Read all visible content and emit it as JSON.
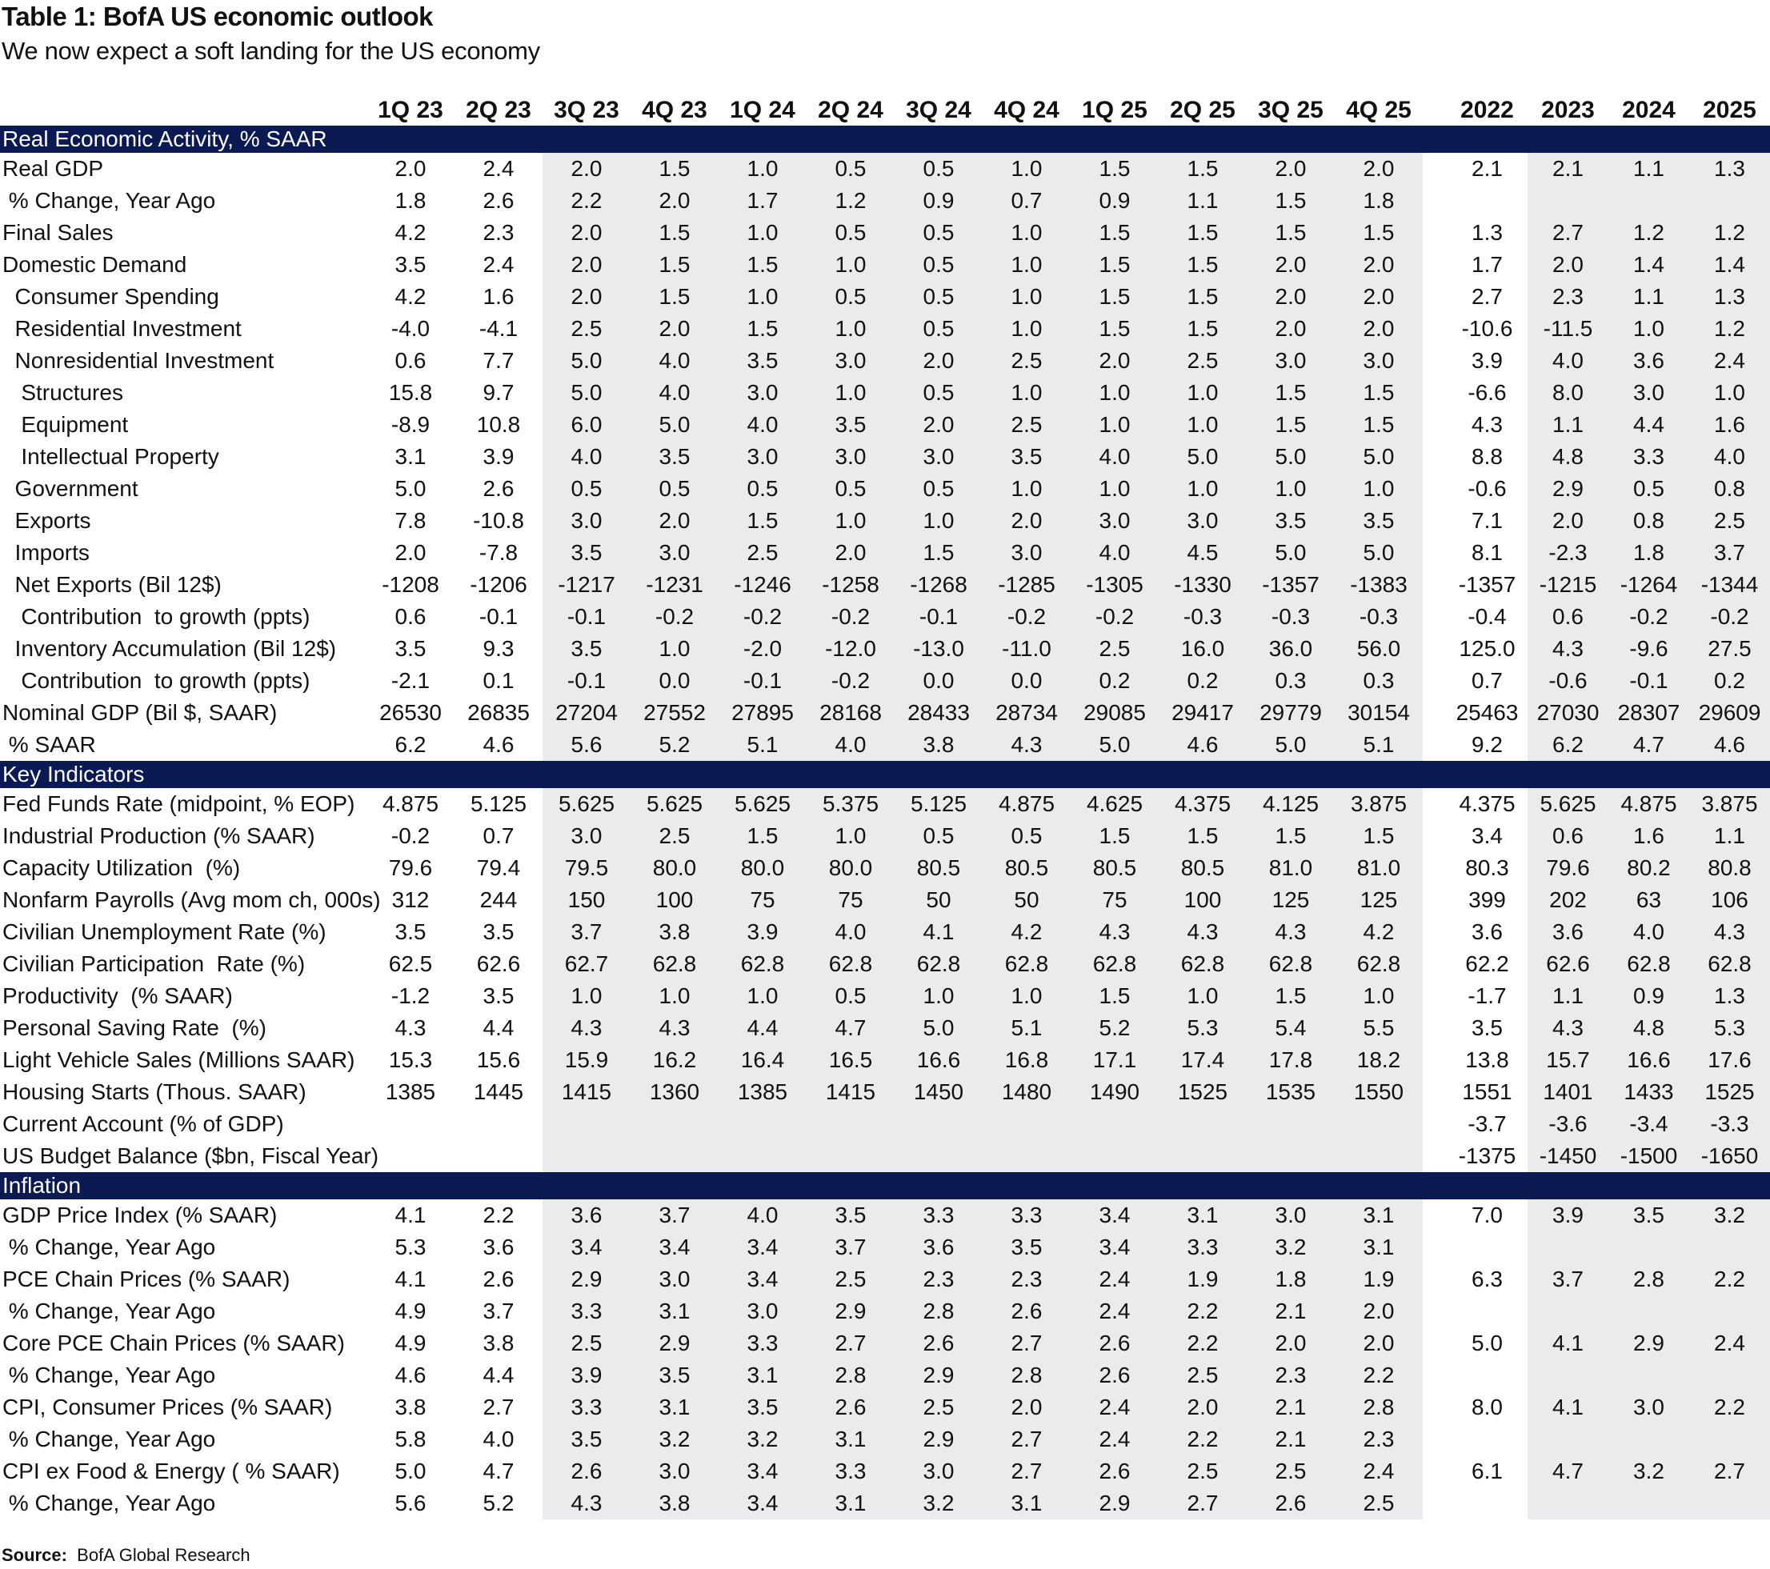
{
  "title": "Table 1: BofA US economic outlook",
  "subtitle": "We now expect a soft landing for the US economy",
  "columns": {
    "quarters": [
      "1Q 23",
      "2Q 23",
      "3Q 23",
      "4Q 23",
      "1Q 24",
      "2Q 24",
      "3Q 24",
      "4Q 24",
      "1Q 25",
      "2Q 25",
      "3Q 25",
      "4Q 25"
    ],
    "years": [
      "2022",
      "2023",
      "2024",
      "2025"
    ]
  },
  "sections": [
    {
      "title": "Real Economic Activity, % SAAR",
      "rows": [
        {
          "label": "Real GDP",
          "q": [
            "2.0",
            "2.4",
            "2.0",
            "1.5",
            "1.0",
            "0.5",
            "0.5",
            "1.0",
            "1.5",
            "1.5",
            "2.0",
            "2.0"
          ],
          "y": [
            "2.1",
            "2.1",
            "1.1",
            "1.3"
          ]
        },
        {
          "label": " % Change, Year Ago",
          "q": [
            "1.8",
            "2.6",
            "2.2",
            "2.0",
            "1.7",
            "1.2",
            "0.9",
            "0.7",
            "0.9",
            "1.1",
            "1.5",
            "1.8"
          ],
          "y": [
            "",
            "",
            "",
            ""
          ]
        },
        {
          "label": "Final Sales",
          "q": [
            "4.2",
            "2.3",
            "2.0",
            "1.5",
            "1.0",
            "0.5",
            "0.5",
            "1.0",
            "1.5",
            "1.5",
            "1.5",
            "1.5"
          ],
          "y": [
            "1.3",
            "2.7",
            "1.2",
            "1.2"
          ]
        },
        {
          "label": "Domestic Demand",
          "q": [
            "3.5",
            "2.4",
            "2.0",
            "1.5",
            "1.5",
            "1.0",
            "0.5",
            "1.0",
            "1.5",
            "1.5",
            "2.0",
            "2.0"
          ],
          "y": [
            "1.7",
            "2.0",
            "1.4",
            "1.4"
          ]
        },
        {
          "label": "  Consumer Spending",
          "q": [
            "4.2",
            "1.6",
            "2.0",
            "1.5",
            "1.0",
            "0.5",
            "0.5",
            "1.0",
            "1.5",
            "1.5",
            "2.0",
            "2.0"
          ],
          "y": [
            "2.7",
            "2.3",
            "1.1",
            "1.3"
          ]
        },
        {
          "label": "  Residential Investment",
          "q": [
            "-4.0",
            "-4.1",
            "2.5",
            "2.0",
            "1.5",
            "1.0",
            "0.5",
            "1.0",
            "1.5",
            "1.5",
            "2.0",
            "2.0"
          ],
          "y": [
            "-10.6",
            "-11.5",
            "1.0",
            "1.2"
          ]
        },
        {
          "label": "  Nonresidential Investment",
          "q": [
            "0.6",
            "7.7",
            "5.0",
            "4.0",
            "3.5",
            "3.0",
            "2.0",
            "2.5",
            "2.0",
            "2.5",
            "3.0",
            "3.0"
          ],
          "y": [
            "3.9",
            "4.0",
            "3.6",
            "2.4"
          ]
        },
        {
          "label": "   Structures",
          "q": [
            "15.8",
            "9.7",
            "5.0",
            "4.0",
            "3.0",
            "1.0",
            "0.5",
            "1.0",
            "1.0",
            "1.0",
            "1.5",
            "1.5"
          ],
          "y": [
            "-6.6",
            "8.0",
            "3.0",
            "1.0"
          ]
        },
        {
          "label": "   Equipment",
          "q": [
            "-8.9",
            "10.8",
            "6.0",
            "5.0",
            "4.0",
            "3.5",
            "2.0",
            "2.5",
            "1.0",
            "1.0",
            "1.5",
            "1.5"
          ],
          "y": [
            "4.3",
            "1.1",
            "4.4",
            "1.6"
          ]
        },
        {
          "label": "   Intellectual Property",
          "q": [
            "3.1",
            "3.9",
            "4.0",
            "3.5",
            "3.0",
            "3.0",
            "3.0",
            "3.5",
            "4.0",
            "5.0",
            "5.0",
            "5.0"
          ],
          "y": [
            "8.8",
            "4.8",
            "3.3",
            "4.0"
          ]
        },
        {
          "label": "  Government",
          "q": [
            "5.0",
            "2.6",
            "0.5",
            "0.5",
            "0.5",
            "0.5",
            "0.5",
            "1.0",
            "1.0",
            "1.0",
            "1.0",
            "1.0"
          ],
          "y": [
            "-0.6",
            "2.9",
            "0.5",
            "0.8"
          ]
        },
        {
          "label": "  Exports",
          "q": [
            "7.8",
            "-10.8",
            "3.0",
            "2.0",
            "1.5",
            "1.0",
            "1.0",
            "2.0",
            "3.0",
            "3.0",
            "3.5",
            "3.5"
          ],
          "y": [
            "7.1",
            "2.0",
            "0.8",
            "2.5"
          ]
        },
        {
          "label": "  Imports",
          "q": [
            "2.0",
            "-7.8",
            "3.5",
            "3.0",
            "2.5",
            "2.0",
            "1.5",
            "3.0",
            "4.0",
            "4.5",
            "5.0",
            "5.0"
          ],
          "y": [
            "8.1",
            "-2.3",
            "1.8",
            "3.7"
          ]
        },
        {
          "label": "  Net Exports (Bil 12$)",
          "q": [
            "-1208",
            "-1206",
            "-1217",
            "-1231",
            "-1246",
            "-1258",
            "-1268",
            "-1285",
            "-1305",
            "-1330",
            "-1357",
            "-1383"
          ],
          "y": [
            "-1357",
            "-1215",
            "-1264",
            "-1344"
          ]
        },
        {
          "label": "   Contribution  to growth (ppts)",
          "q": [
            "0.6",
            "-0.1",
            "-0.1",
            "-0.2",
            "-0.2",
            "-0.2",
            "-0.1",
            "-0.2",
            "-0.2",
            "-0.3",
            "-0.3",
            "-0.3"
          ],
          "y": [
            "-0.4",
            "0.6",
            "-0.2",
            "-0.2"
          ]
        },
        {
          "label": "  Inventory Accumulation (Bil 12$)",
          "q": [
            "3.5",
            "9.3",
            "3.5",
            "1.0",
            "-2.0",
            "-12.0",
            "-13.0",
            "-11.0",
            "2.5",
            "16.0",
            "36.0",
            "56.0"
          ],
          "y": [
            "125.0",
            "4.3",
            "-9.6",
            "27.5"
          ]
        },
        {
          "label": "   Contribution  to growth (ppts)",
          "q": [
            "-2.1",
            "0.1",
            "-0.1",
            "0.0",
            "-0.1",
            "-0.2",
            "0.0",
            "0.0",
            "0.2",
            "0.2",
            "0.3",
            "0.3"
          ],
          "y": [
            "0.7",
            "-0.6",
            "-0.1",
            "0.2"
          ]
        },
        {
          "label": "Nominal GDP (Bil $, SAAR)",
          "q": [
            "26530",
            "26835",
            "27204",
            "27552",
            "27895",
            "28168",
            "28433",
            "28734",
            "29085",
            "29417",
            "29779",
            "30154"
          ],
          "y": [
            "25463",
            "27030",
            "28307",
            "29609"
          ]
        },
        {
          "label": " % SAAR",
          "q": [
            "6.2",
            "4.6",
            "5.6",
            "5.2",
            "5.1",
            "4.0",
            "3.8",
            "4.3",
            "5.0",
            "4.6",
            "5.0",
            "5.1"
          ],
          "y": [
            "9.2",
            "6.2",
            "4.7",
            "4.6"
          ]
        }
      ]
    },
    {
      "title": "Key Indicators",
      "rows": [
        {
          "label": "Fed Funds Rate (midpoint, % EOP)",
          "q": [
            "4.875",
            "5.125",
            "5.625",
            "5.625",
            "5.625",
            "5.375",
            "5.125",
            "4.875",
            "4.625",
            "4.375",
            "4.125",
            "3.875"
          ],
          "y": [
            "4.375",
            "5.625",
            "4.875",
            "3.875"
          ]
        },
        {
          "label": "Industrial Production (% SAAR)",
          "q": [
            "-0.2",
            "0.7",
            "3.0",
            "2.5",
            "1.5",
            "1.0",
            "0.5",
            "0.5",
            "1.5",
            "1.5",
            "1.5",
            "1.5"
          ],
          "y": [
            "3.4",
            "0.6",
            "1.6",
            "1.1"
          ]
        },
        {
          "label": "Capacity Utilization  (%)",
          "q": [
            "79.6",
            "79.4",
            "79.5",
            "80.0",
            "80.0",
            "80.0",
            "80.5",
            "80.5",
            "80.5",
            "80.5",
            "81.0",
            "81.0"
          ],
          "y": [
            "80.3",
            "79.6",
            "80.2",
            "80.8"
          ]
        },
        {
          "label": "Nonfarm Payrolls (Avg mom ch, 000s)",
          "q": [
            "312",
            "244",
            "150",
            "100",
            "75",
            "75",
            "50",
            "50",
            "75",
            "100",
            "125",
            "125"
          ],
          "y": [
            "399",
            "202",
            "63",
            "106"
          ]
        },
        {
          "label": "Civilian Unemployment Rate (%)",
          "q": [
            "3.5",
            "3.5",
            "3.7",
            "3.8",
            "3.9",
            "4.0",
            "4.1",
            "4.2",
            "4.3",
            "4.3",
            "4.3",
            "4.2"
          ],
          "y": [
            "3.6",
            "3.6",
            "4.0",
            "4.3"
          ]
        },
        {
          "label": "Civilian Participation  Rate (%)",
          "q": [
            "62.5",
            "62.6",
            "62.7",
            "62.8",
            "62.8",
            "62.8",
            "62.8",
            "62.8",
            "62.8",
            "62.8",
            "62.8",
            "62.8"
          ],
          "y": [
            "62.2",
            "62.6",
            "62.8",
            "62.8"
          ]
        },
        {
          "label": "Productivity  (% SAAR)",
          "q": [
            "-1.2",
            "3.5",
            "1.0",
            "1.0",
            "1.0",
            "0.5",
            "1.0",
            "1.0",
            "1.5",
            "1.0",
            "1.5",
            "1.0"
          ],
          "y": [
            "-1.7",
            "1.1",
            "0.9",
            "1.3"
          ]
        },
        {
          "label": "Personal Saving Rate  (%)",
          "q": [
            "4.3",
            "4.4",
            "4.3",
            "4.3",
            "4.4",
            "4.7",
            "5.0",
            "5.1",
            "5.2",
            "5.3",
            "5.4",
            "5.5"
          ],
          "y": [
            "3.5",
            "4.3",
            "4.8",
            "5.3"
          ]
        },
        {
          "label": "Light Vehicle Sales (Millions SAAR)",
          "q": [
            "15.3",
            "15.6",
            "15.9",
            "16.2",
            "16.4",
            "16.5",
            "16.6",
            "16.8",
            "17.1",
            "17.4",
            "17.8",
            "18.2"
          ],
          "y": [
            "13.8",
            "15.7",
            "16.6",
            "17.6"
          ]
        },
        {
          "label": "Housing Starts (Thous. SAAR)",
          "q": [
            "1385",
            "1445",
            "1415",
            "1360",
            "1385",
            "1415",
            "1450",
            "1480",
            "1490",
            "1525",
            "1535",
            "1550"
          ],
          "y": [
            "1551",
            "1401",
            "1433",
            "1525"
          ]
        },
        {
          "label": "Current Account (% of GDP)",
          "q": [
            "",
            "",
            "",
            "",
            "",
            "",
            "",
            "",
            "",
            "",
            "",
            ""
          ],
          "y": [
            "-3.7",
            "-3.6",
            "-3.4",
            "-3.3"
          ]
        },
        {
          "label": "US Budget Balance ($bn, Fiscal Year)",
          "q": [
            "",
            "",
            "",
            "",
            "",
            "",
            "",
            "",
            "",
            "",
            "",
            ""
          ],
          "y": [
            "-1375",
            "-1450",
            "-1500",
            "-1650"
          ]
        }
      ]
    },
    {
      "title": "Inflation",
      "rows": [
        {
          "label": "GDP Price Index (% SAAR)",
          "q": [
            "4.1",
            "2.2",
            "3.6",
            "3.7",
            "4.0",
            "3.5",
            "3.3",
            "3.3",
            "3.4",
            "3.1",
            "3.0",
            "3.1"
          ],
          "y": [
            "7.0",
            "3.9",
            "3.5",
            "3.2"
          ]
        },
        {
          "label": " % Change, Year Ago",
          "q": [
            "5.3",
            "3.6",
            "3.4",
            "3.4",
            "3.4",
            "3.7",
            "3.6",
            "3.5",
            "3.4",
            "3.3",
            "3.2",
            "3.1"
          ],
          "y": [
            "",
            "",
            "",
            ""
          ]
        },
        {
          "label": "PCE Chain Prices (% SAAR)",
          "q": [
            "4.1",
            "2.6",
            "2.9",
            "3.0",
            "3.4",
            "2.5",
            "2.3",
            "2.3",
            "2.4",
            "1.9",
            "1.8",
            "1.9"
          ],
          "y": [
            "6.3",
            "3.7",
            "2.8",
            "2.2"
          ]
        },
        {
          "label": " % Change, Year Ago",
          "q": [
            "4.9",
            "3.7",
            "3.3",
            "3.1",
            "3.0",
            "2.9",
            "2.8",
            "2.6",
            "2.4",
            "2.2",
            "2.1",
            "2.0"
          ],
          "y": [
            "",
            "",
            "",
            ""
          ]
        },
        {
          "label": "Core PCE Chain Prices (% SAAR)",
          "q": [
            "4.9",
            "3.8",
            "2.5",
            "2.9",
            "3.3",
            "2.7",
            "2.6",
            "2.7",
            "2.6",
            "2.2",
            "2.0",
            "2.0"
          ],
          "y": [
            "5.0",
            "4.1",
            "2.9",
            "2.4"
          ]
        },
        {
          "label": " % Change, Year Ago",
          "q": [
            "4.6",
            "4.4",
            "3.9",
            "3.5",
            "3.1",
            "2.8",
            "2.9",
            "2.8",
            "2.6",
            "2.5",
            "2.3",
            "2.2"
          ],
          "y": [
            "",
            "",
            "",
            ""
          ]
        },
        {
          "label": "CPI, Consumer Prices (% SAAR)",
          "q": [
            "3.8",
            "2.7",
            "3.3",
            "3.1",
            "3.5",
            "2.6",
            "2.5",
            "2.0",
            "2.4",
            "2.0",
            "2.1",
            "2.8"
          ],
          "y": [
            "8.0",
            "4.1",
            "3.0",
            "2.2"
          ]
        },
        {
          "label": " % Change, Year Ago",
          "q": [
            "5.8",
            "4.0",
            "3.5",
            "3.2",
            "3.2",
            "3.1",
            "2.9",
            "2.7",
            "2.4",
            "2.2",
            "2.1",
            "2.3"
          ],
          "y": [
            "",
            "",
            "",
            ""
          ]
        },
        {
          "label": "CPI ex Food & Energy ( % SAAR)",
          "q": [
            "5.0",
            "4.7",
            "2.6",
            "3.0",
            "3.4",
            "3.3",
            "3.0",
            "2.7",
            "2.6",
            "2.5",
            "2.5",
            "2.4"
          ],
          "y": [
            "6.1",
            "4.7",
            "3.2",
            "2.7"
          ]
        },
        {
          "label": " % Change, Year Ago",
          "q": [
            "5.6",
            "5.2",
            "4.3",
            "3.8",
            "3.4",
            "3.1",
            "3.2",
            "3.1",
            "2.9",
            "2.7",
            "2.6",
            "2.5"
          ],
          "y": [
            "",
            "",
            "",
            ""
          ]
        }
      ]
    }
  ],
  "source": {
    "label": "Source:",
    "text": "BofA Global Research"
  },
  "colors": {
    "section_header_bg": "#0b1a53",
    "shade": "#ebebee"
  }
}
